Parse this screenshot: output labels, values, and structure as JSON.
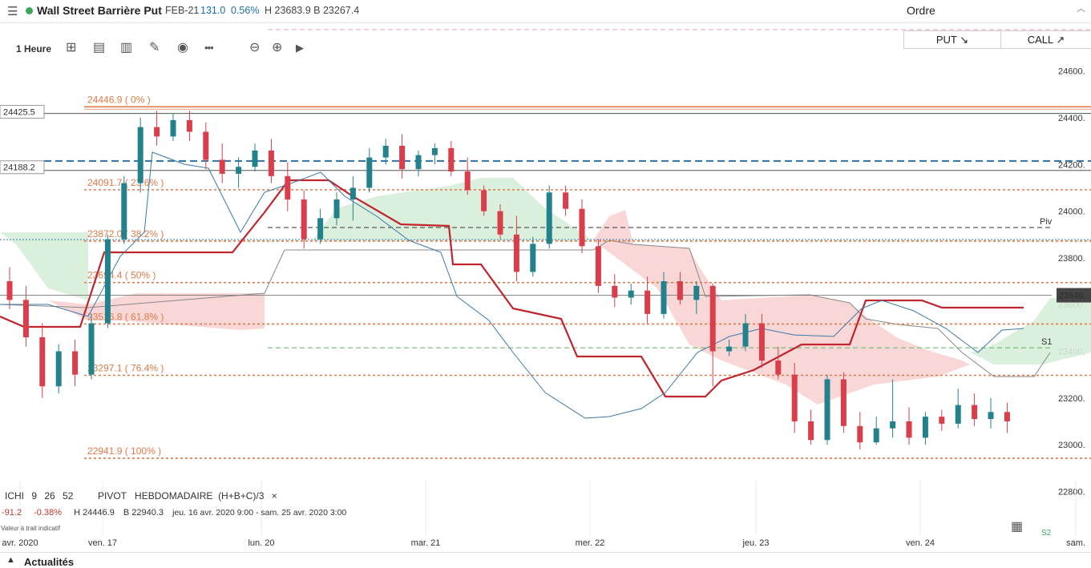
{
  "header": {
    "menu_icon": "☰",
    "live_color": "#3aa757",
    "title": "Wall Street Barrière Put",
    "contract": "FEB-21",
    "price": "131.0",
    "change": "0.56%",
    "high_low": "H 23683.9  B 23267.4",
    "order_label": "Ordre",
    "scroll_icon": "chevron-up-icon"
  },
  "toolbar": {
    "timeframe": "1 Heure",
    "icons": [
      "chart-type-icon",
      "calendar-icon",
      "indicators-icon",
      "draw-icon",
      "eye-icon",
      "more-icon",
      "zoom-out-icon",
      "zoom-in-icon",
      "play-icon"
    ],
    "glyphs": [
      "⊞",
      "▤",
      "▥",
      "✎",
      "◉",
      "•••",
      "⊖",
      "⊕",
      "▶"
    ]
  },
  "trade": {
    "put_label": "PUT ↘",
    "call_label": "CALL ↗"
  },
  "indicators": {
    "ichi_name": "ICHI",
    "ichi_params": [
      "9",
      "26",
      "52"
    ],
    "pivot_name": "PIVOT",
    "pivot_type": "HEBDOMADAIRE",
    "pivot_formula": "(H+B+C)/3",
    "close_glyph": "×"
  },
  "info": {
    "change_pts": "-91.2",
    "change_pct": "-0.38%",
    "high": "H 24446.9",
    "low": "B 22940.3",
    "range": "jeu. 16 avr. 2020 9:00 - sam. 25 avr. 2020 3:00",
    "note": "Valeur à trait indicatif"
  },
  "footer": {
    "s2_label": "S2",
    "news_label": "Actualités",
    "news_caret": "▲"
  },
  "chart_data": {
    "type": "candlestick",
    "colors": {
      "up": "#23818c",
      "down": "#d93e4a",
      "fib": "#e07a4a",
      "kijun": "#c0252e",
      "tenkan": "#3a78a8",
      "cloud_up": "#d7eed8",
      "cloud_down": "#f8d3d3"
    },
    "ylim": [
      22700,
      24720
    ],
    "y_ticks": [
      22800,
      23000,
      23200,
      23400,
      23600,
      23800,
      24000,
      24200,
      24400,
      24600
    ],
    "y_tick_labels": [
      "22800.",
      "23000.",
      "23200.",
      "23400.",
      "23600.",
      "23800.",
      "24000.",
      "24200.",
      "24400.",
      "24600."
    ],
    "x_tick_labels": [
      "avr. 2020",
      "ven. 17",
      "lun. 20",
      "mar. 21",
      "mer. 22",
      "jeu. 23",
      "ven. 24",
      "sam."
    ],
    "x_tick_index": [
      -1,
      5,
      15,
      25,
      35,
      45,
      55,
      65
    ],
    "current_price": {
      "value": 23640,
      "label": "23640."
    },
    "left_markers": [
      {
        "value": 24425.5,
        "label": "24425.5"
      },
      {
        "value": 24188.2,
        "label": "24188.2"
      }
    ],
    "fib_levels": [
      {
        "value": 24446.9,
        "label": "24446.9 ( 0% )"
      },
      {
        "value": 24091.7,
        "label": "24091.7 ( 23.6% )"
      },
      {
        "value": 23872.0,
        "label": "23872.0 ( 38.2% )"
      },
      {
        "value": 23694.4,
        "label": "23694.4 ( 50% )"
      },
      {
        "value": 23516.8,
        "label": "23516.8 ( 61.8% )"
      },
      {
        "value": 23297.1,
        "label": "23297.1 ( 76.4% )"
      },
      {
        "value": 22941.9,
        "label": "22941.9 ( 100% )"
      }
    ],
    "pivot_levels": [
      {
        "name": "Piv",
        "value": 23930
      },
      {
        "name": "S1",
        "value": 23415
      }
    ],
    "dashed_level": 24215,
    "dotted_level": 23878,
    "candles": [
      [
        23700,
        23760,
        23580,
        23620
      ],
      [
        23620,
        23680,
        23420,
        23460
      ],
      [
        23460,
        23520,
        23200,
        23250
      ],
      [
        23250,
        23430,
        23220,
        23400
      ],
      [
        23400,
        23450,
        23250,
        23300
      ],
      [
        23300,
        23560,
        23280,
        23520
      ],
      [
        23520,
        23900,
        23500,
        23880
      ],
      [
        23880,
        24150,
        23860,
        24120
      ],
      [
        24120,
        24400,
        24080,
        24360
      ],
      [
        24360,
        24430,
        24280,
        24320
      ],
      [
        24320,
        24420,
        24300,
        24390
      ],
      [
        24390,
        24430,
        24300,
        24340
      ],
      [
        24340,
        24380,
        24180,
        24220
      ],
      [
        24220,
        24290,
        24120,
        24160
      ],
      [
        24160,
        24230,
        24100,
        24190
      ],
      [
        24190,
        24290,
        24170,
        24260
      ],
      [
        24260,
        24310,
        24120,
        24150
      ],
      [
        24150,
        24210,
        24000,
        24050
      ],
      [
        24050,
        24090,
        23840,
        23880
      ],
      [
        23880,
        24010,
        23860,
        23970
      ],
      [
        23970,
        24080,
        23940,
        24050
      ],
      [
        24050,
        24150,
        23960,
        24100
      ],
      [
        24100,
        24270,
        24080,
        24230
      ],
      [
        24230,
        24310,
        24200,
        24280
      ],
      [
        24280,
        24330,
        24140,
        24180
      ],
      [
        24180,
        24260,
        24150,
        24240
      ],
      [
        24240,
        24290,
        24200,
        24270
      ],
      [
        24270,
        24300,
        24150,
        24170
      ],
      [
        24170,
        24230,
        24070,
        24090
      ],
      [
        24090,
        24110,
        23980,
        24000
      ],
      [
        24000,
        24030,
        23880,
        23900
      ],
      [
        23900,
        23980,
        23700,
        23740
      ],
      [
        23740,
        23890,
        23720,
        23860
      ],
      [
        23860,
        24110,
        23840,
        24080
      ],
      [
        24080,
        24110,
        23980,
        24010
      ],
      [
        24010,
        24050,
        23820,
        23850
      ],
      [
        23850,
        23880,
        23650,
        23680
      ],
      [
        23680,
        23730,
        23590,
        23630
      ],
      [
        23630,
        23690,
        23600,
        23660
      ],
      [
        23660,
        23720,
        23520,
        23560
      ],
      [
        23560,
        23740,
        23540,
        23700
      ],
      [
        23700,
        23740,
        23600,
        23620
      ],
      [
        23620,
        23700,
        23560,
        23680
      ],
      [
        23680,
        23690,
        23250,
        23400
      ],
      [
        23400,
        23450,
        23380,
        23420
      ],
      [
        23420,
        23560,
        23400,
        23520
      ],
      [
        23520,
        23560,
        23330,
        23360
      ],
      [
        23360,
        23420,
        23280,
        23300
      ],
      [
        23300,
        23350,
        23050,
        23100
      ],
      [
        23100,
        23150,
        23000,
        23020
      ],
      [
        23020,
        23300,
        23000,
        23280
      ],
      [
        23280,
        23310,
        23050,
        23080
      ],
      [
        23080,
        23140,
        22980,
        23010
      ],
      [
        23010,
        23120,
        23000,
        23070
      ],
      [
        23070,
        23280,
        23030,
        23100
      ],
      [
        23100,
        23160,
        23000,
        23030
      ],
      [
        23030,
        23140,
        23000,
        23120
      ],
      [
        23120,
        23150,
        23060,
        23090
      ],
      [
        23090,
        23240,
        23070,
        23170
      ],
      [
        23170,
        23220,
        23080,
        23110
      ],
      [
        23110,
        23200,
        23070,
        23140
      ],
      [
        23140,
        23180,
        23050,
        23100
      ]
    ]
  }
}
